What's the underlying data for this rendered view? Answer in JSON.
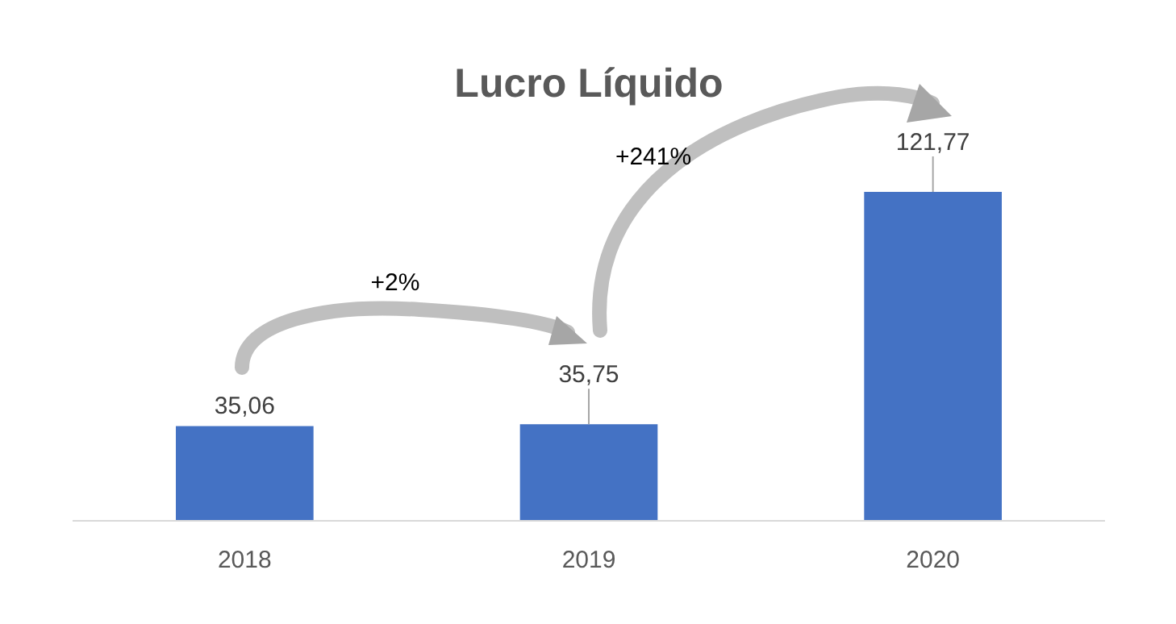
{
  "chart_data": {
    "type": "bar",
    "title": "Lucro Líquido",
    "categories": [
      "2018",
      "2019",
      "2020"
    ],
    "values": [
      35.06,
      35.75,
      121.77
    ],
    "value_labels": [
      "35,06",
      "35,75",
      "121,77"
    ],
    "color": "#4472c4",
    "annotations": [
      "+2%",
      "+241%"
    ]
  }
}
